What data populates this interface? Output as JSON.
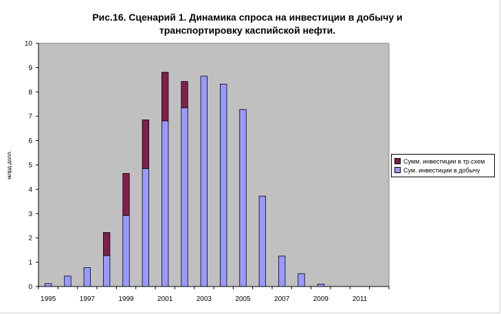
{
  "chart_data": {
    "type": "bar",
    "stacked": true,
    "title_lines": [
      "Рис.16. Сценарий 1. Динамика спроса на инвестиции в добычу и",
      "транспортировку каспийской нефти."
    ],
    "ylabel": "млрд долл.",
    "xlabel": "",
    "ylim": [
      0,
      10
    ],
    "yticks": [
      0,
      1,
      2,
      3,
      4,
      5,
      6,
      7,
      8,
      9,
      10
    ],
    "grid": false,
    "plot_background": "#c0c0c0",
    "legend_position": "right",
    "categories": [
      "1995",
      "1996",
      "1997",
      "1998",
      "1999",
      "2000",
      "2001",
      "2002",
      "2003",
      "2004",
      "2005",
      "2006",
      "2007",
      "2008",
      "2009",
      "2010",
      "2011",
      "2012"
    ],
    "x_tick_labels": [
      "1995",
      "1997",
      "1999",
      "2001",
      "2003",
      "2005",
      "2007",
      "2009",
      "2011"
    ],
    "series": [
      {
        "name": "Сум. инвестиции в добычу",
        "color": "#9999ff",
        "values": [
          0.12,
          0.43,
          0.78,
          1.27,
          2.92,
          4.85,
          6.81,
          7.35,
          8.65,
          8.32,
          7.28,
          3.72,
          1.25,
          0.53,
          0.1,
          0,
          0,
          0
        ]
      },
      {
        "name": "Сумм. инвестиции в тр.схем",
        "color": "#7f1f4c",
        "values": [
          0,
          0,
          0,
          0.95,
          1.73,
          2.0,
          2.0,
          1.08,
          0,
          0,
          0,
          0,
          0,
          0,
          0,
          0,
          0,
          0
        ]
      }
    ]
  }
}
